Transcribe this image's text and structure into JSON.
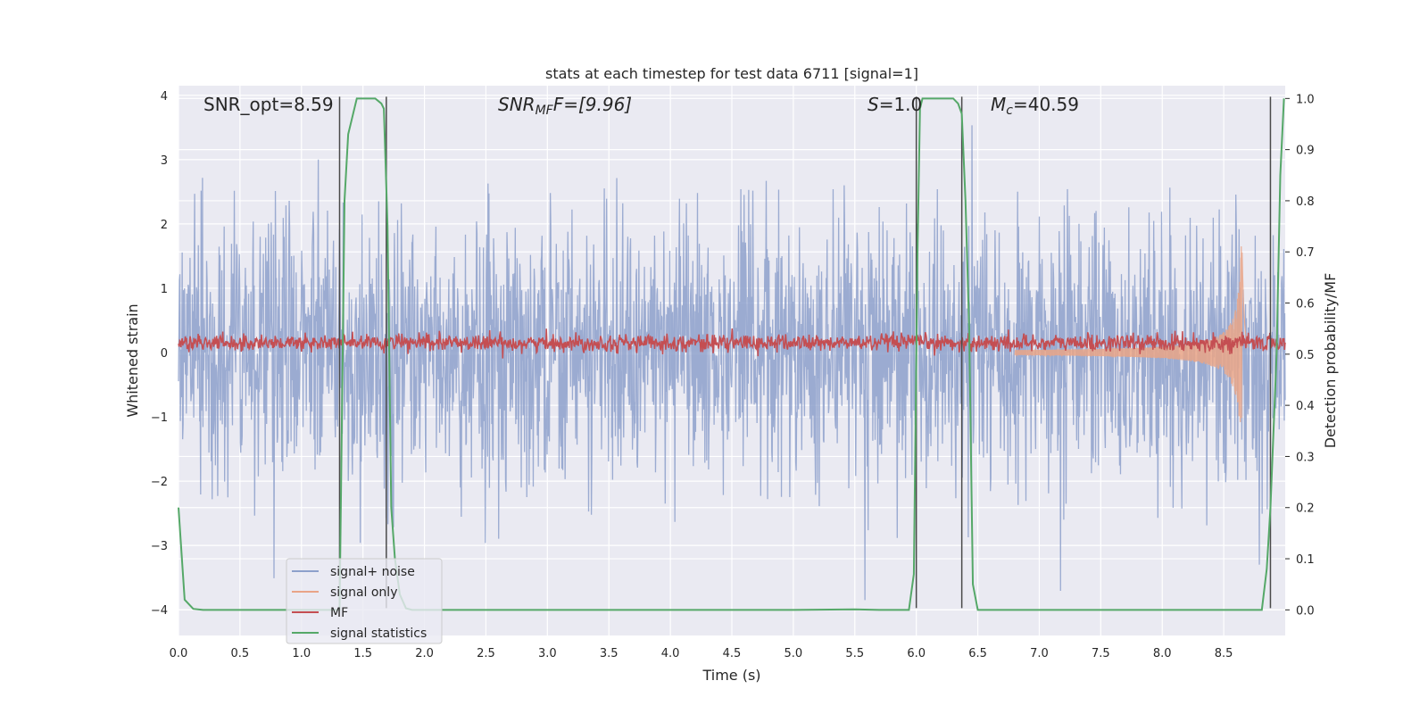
{
  "chart_data": {
    "type": "line",
    "title": "stats at each timestep for test data 6711 [signal=1]",
    "xlabel": "Time (s)",
    "ylabel": "Whitened strain",
    "y2label": "Detection probability/MF",
    "xlim": [
      0.0,
      9.0
    ],
    "ylim": [
      -4.4,
      4.15
    ],
    "y2lim": [
      -0.05,
      1.025
    ],
    "xticks": [
      "0.0",
      "0.5",
      "1.0",
      "1.5",
      "2.0",
      "2.5",
      "3.0",
      "3.5",
      "4.0",
      "4.5",
      "5.0",
      "5.5",
      "6.0",
      "6.5",
      "7.0",
      "7.5",
      "8.0",
      "8.5"
    ],
    "yticks": [
      "4",
      "3",
      "2",
      "1",
      "0",
      "−1",
      "−2",
      "−3",
      "−4"
    ],
    "y2ticks": [
      "1.0",
      "0.9",
      "0.8",
      "0.7",
      "0.6",
      "0.5",
      "0.4",
      "0.3",
      "0.2",
      "0.1",
      "0.0"
    ],
    "grid": true,
    "legend_position": "lower-left",
    "annotations": {
      "snr_opt": "SNR_opt=8.59",
      "snr_mf_main": "SNR",
      "snr_mf_sub": "MF",
      "snr_mf_rest": "F=[9.96]",
      "s_main": "S",
      "s_rest": "=1.0",
      "mc_main": "M",
      "mc_sub": "c",
      "mc_rest": "=40.59"
    },
    "vlines_s": [
      1.31,
      1.69,
      6.0,
      6.37,
      8.88
    ],
    "series": [
      {
        "name": "signal+ noise",
        "color": "#8da0cb",
        "noise_amplitude": 1.0,
        "peak_range": [
          -4.0,
          3.8
        ]
      },
      {
        "name": "signal only",
        "color": "#e9a487",
        "chirp_time_s": 8.65,
        "chirp_peak": 2.2
      },
      {
        "name": "MF",
        "color": "#c44e52",
        "level": 0.15,
        "jitter": 0.12
      },
      {
        "name": "signal statistics",
        "color": "#55a868",
        "x": [
          0.0,
          0.05,
          0.12,
          0.2,
          0.5,
          1.0,
          1.28,
          1.31,
          1.35,
          1.38,
          1.45,
          1.6,
          1.65,
          1.67,
          1.7,
          1.73,
          1.76,
          1.8,
          1.85,
          1.9,
          2.0,
          3.0,
          4.0,
          5.0,
          5.5,
          5.7,
          5.94,
          5.98,
          6.01,
          6.03,
          6.05,
          6.1,
          6.3,
          6.34,
          6.37,
          6.4,
          6.43,
          6.46,
          6.5,
          6.6,
          7.0,
          8.0,
          8.5,
          8.75,
          8.81,
          8.85,
          8.88,
          8.93,
          8.96,
          8.99
        ],
        "y": [
          0.2,
          0.02,
          0.002,
          0.0,
          0.0,
          0.0,
          0.0,
          0.0,
          0.8,
          0.93,
          1.0,
          1.0,
          0.99,
          0.98,
          0.75,
          0.2,
          0.1,
          0.03,
          0.003,
          0.0,
          0.0,
          0.0,
          0.0,
          0.0,
          0.001,
          0.0,
          0.0,
          0.07,
          0.7,
          0.98,
          1.0,
          1.0,
          1.0,
          0.99,
          0.97,
          0.8,
          0.55,
          0.05,
          0.0,
          0.0,
          0.0,
          0.0,
          0.0,
          0.0,
          0.0,
          0.08,
          0.2,
          0.5,
          0.85,
          1.0
        ]
      }
    ]
  }
}
